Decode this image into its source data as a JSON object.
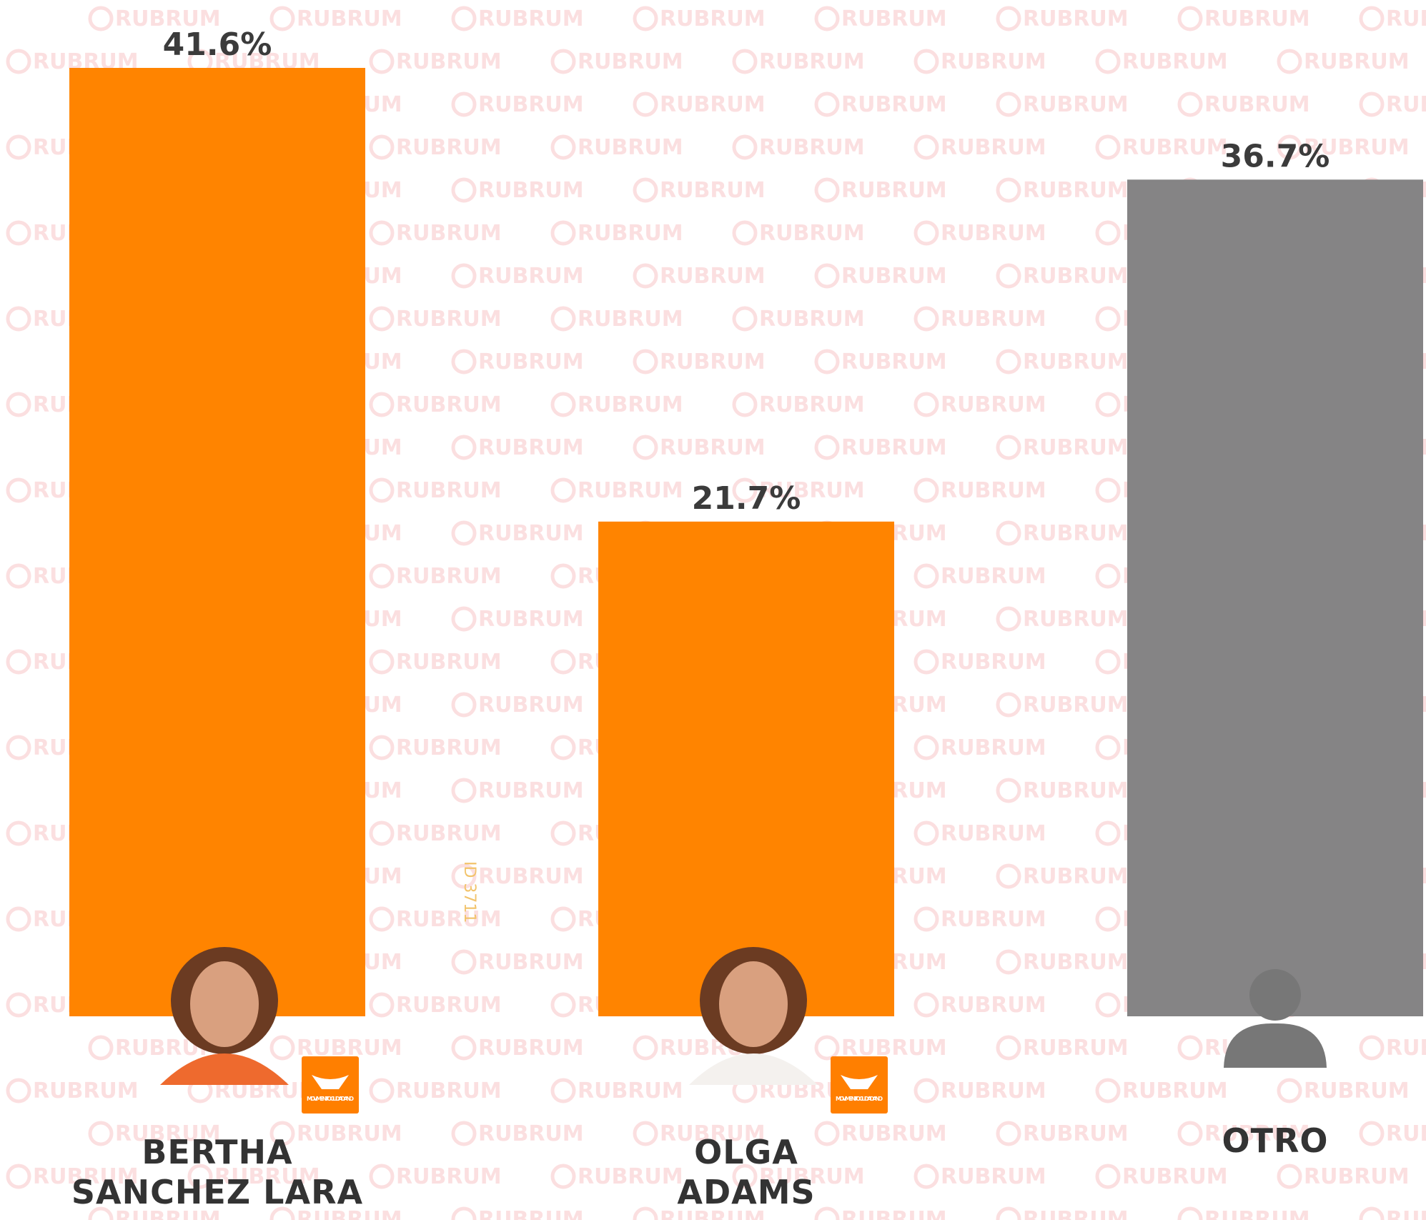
{
  "chart_data": {
    "type": "bar",
    "categories": [
      "BERTHA\nSANCHEZ LARA",
      "OLGA\nADAMS",
      "OTRO"
    ],
    "values": [
      41.6,
      21.7,
      36.7
    ],
    "value_labels": [
      "41.6%",
      "21.7%",
      "36.7%"
    ],
    "colors": [
      "#ff8400",
      "#ff8400",
      "#858485"
    ],
    "badges": [
      "MOVIMIENTO CIUDADANO",
      "MOVIMIENTO CIUDADANO",
      null
    ],
    "watermark": "RUBRUM",
    "id_text": "ID 3711"
  }
}
